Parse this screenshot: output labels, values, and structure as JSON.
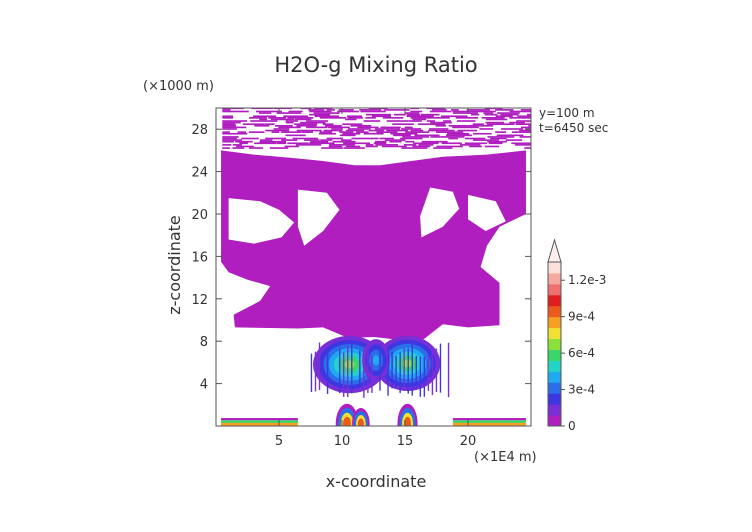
{
  "chart_data": {
    "type": "heatmap",
    "title": "H2O-g Mixing Ratio",
    "xlabel": "x-coordinate",
    "ylabel": "z-coordinate",
    "x_unit": "(×1E4 m)",
    "y_unit": "(×1000 m)",
    "annotations": [
      "y=100  m",
      "t=6450 sec"
    ],
    "x_range": [
      0,
      25
    ],
    "y_range": [
      0,
      30
    ],
    "x_ticks": [
      5,
      10,
      15,
      20
    ],
    "y_ticks": [
      4,
      8,
      12,
      16,
      20,
      24,
      28
    ],
    "grid": false,
    "colorbar": {
      "placement": "right",
      "range": [
        0,
        0.00135
      ],
      "labels": [
        {
          "value": 0,
          "text": "0"
        },
        {
          "value": 0.0003,
          "text": "3e-4"
        },
        {
          "value": 0.0006,
          "text": "6e-4"
        },
        {
          "value": 0.0009,
          "text": "9e-4"
        },
        {
          "value": 0.0012,
          "text": "1.2e-3"
        }
      ],
      "colors": [
        "#b01ec0",
        "#7a2ed6",
        "#3e36e0",
        "#2a6ee8",
        "#1ea9f0",
        "#22d4c8",
        "#3ad66a",
        "#8be03a",
        "#f0e030",
        "#f5a020",
        "#ee5a1e",
        "#e01e1e",
        "#f07070",
        "#f5a8a0",
        "#fae0d8"
      ]
    }
  }
}
